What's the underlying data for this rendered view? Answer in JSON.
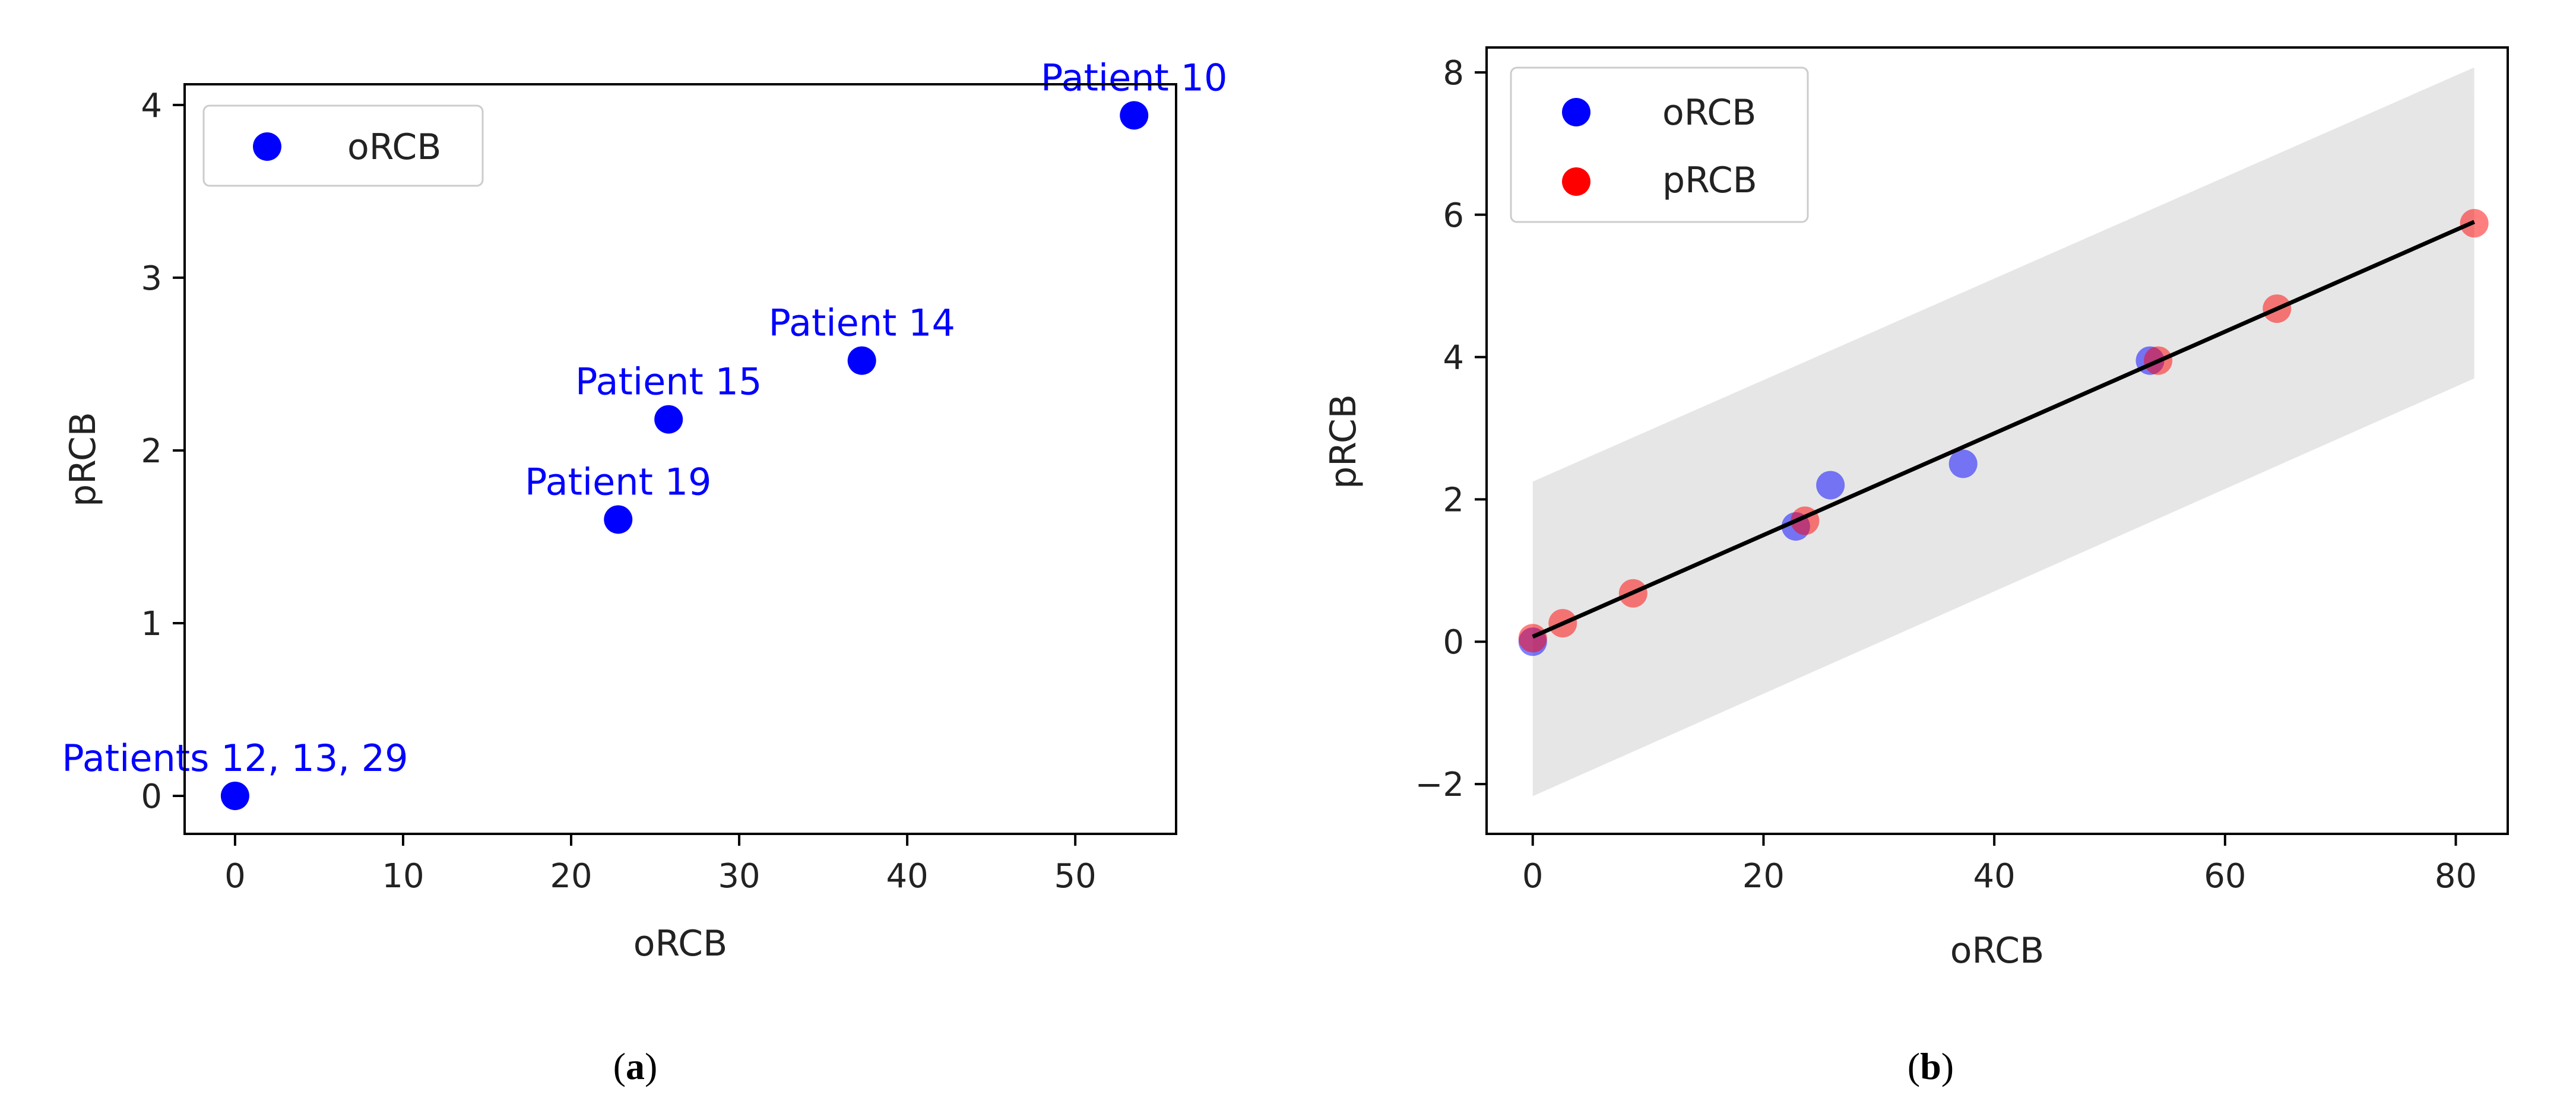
{
  "chart_data": [
    {
      "panel": "a",
      "type": "scatter",
      "xlabel": "oRCB",
      "ylabel": "pRCB",
      "xlim": [
        -3,
        56
      ],
      "ylim": [
        -0.22,
        4.12
      ],
      "xticks": [
        0,
        10,
        20,
        30,
        40,
        50
      ],
      "yticks": [
        0,
        1,
        2,
        3,
        4
      ],
      "grid": false,
      "legend_position": "upper-left",
      "series": [
        {
          "name": "oRCB",
          "color": "#0000ff",
          "points": [
            {
              "x": 0,
              "y": 0,
              "label": "Patients 12, 13, 29"
            },
            {
              "x": 22.8,
              "y": 1.6,
              "label": "Patient 19"
            },
            {
              "x": 25.8,
              "y": 2.18,
              "label": "Patient 15"
            },
            {
              "x": 37.3,
              "y": 2.52,
              "label": "Patient 14"
            },
            {
              "x": 53.5,
              "y": 3.94,
              "label": "Patient 10"
            }
          ]
        }
      ]
    },
    {
      "panel": "b",
      "type": "scatter",
      "xlabel": "oRCB",
      "ylabel": "pRCB",
      "xlim": [
        -4,
        84.5
      ],
      "ylim": [
        -2.7,
        8.35
      ],
      "xticks": [
        0,
        20,
        40,
        60,
        80
      ],
      "yticks": [
        -2,
        0,
        2,
        4,
        6,
        8
      ],
      "grid": false,
      "legend_position": "upper-left",
      "series": [
        {
          "name": "oRCB",
          "color": "#0000ff",
          "points": [
            {
              "x": 0,
              "y": 0
            },
            {
              "x": 22.8,
              "y": 1.62
            },
            {
              "x": 25.8,
              "y": 2.2
            },
            {
              "x": 37.3,
              "y": 2.5
            },
            {
              "x": 53.5,
              "y": 3.95
            }
          ]
        },
        {
          "name": "pRCB",
          "color": "#ff0000",
          "points": [
            {
              "x": 0,
              "y": 0.05
            },
            {
              "x": 2.6,
              "y": 0.26
            },
            {
              "x": 8.7,
              "y": 0.68
            },
            {
              "x": 23.6,
              "y": 1.7
            },
            {
              "x": 54.2,
              "y": 3.95
            },
            {
              "x": 64.5,
              "y": 4.68
            },
            {
              "x": 81.6,
              "y": 5.88
            }
          ]
        }
      ],
      "fit_line": {
        "x": [
          0,
          81.6
        ],
        "y": [
          0.07,
          5.9
        ],
        "color": "#000000"
      },
      "confidence_band": {
        "x": [
          0,
          81.6
        ],
        "lower": [
          -2.17,
          3.7
        ],
        "upper": [
          2.25,
          8.07
        ],
        "color": "#e6e6e6"
      }
    }
  ],
  "captions": {
    "a": {
      "open": "(",
      "letter": "a",
      "close": ")"
    },
    "b": {
      "open": "(",
      "letter": "b",
      "close": ")"
    }
  }
}
